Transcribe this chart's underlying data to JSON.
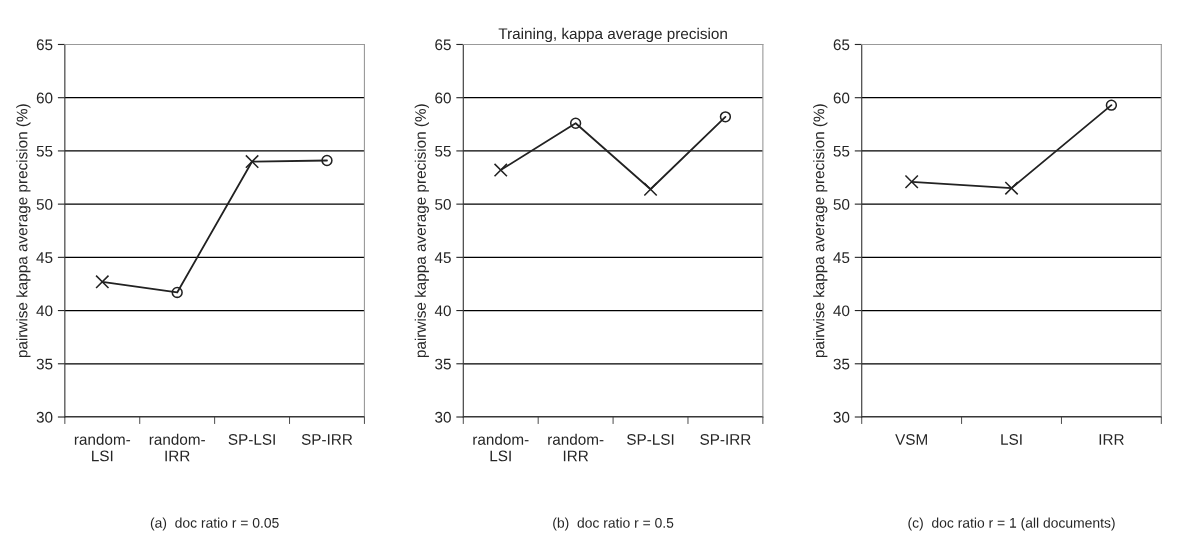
{
  "chart_data": [
    {
      "type": "line",
      "categories": [
        "random-\nLSI",
        "random-\nIRR",
        "SP-LSI",
        "SP-IRR"
      ],
      "ylabel": "pairwise kappa average precision (%)",
      "ylim": [
        30,
        65
      ],
      "yticks": [
        30,
        35,
        40,
        45,
        50,
        55,
        60,
        65
      ],
      "grid": "y",
      "annotations": [
        "(a)  doc ratio r = 0.05"
      ],
      "series": [
        {
          "color": "#222222",
          "values": [
            42.7,
            41.7,
            54.0,
            54.1
          ],
          "marker": "none"
        },
        {
          "type": "scatter",
          "color": "#222222",
          "x": [
            "random-\nLSI",
            "SP-LSI"
          ],
          "values": [
            42.7,
            54.0
          ],
          "marker": "cross"
        },
        {
          "type": "scatter",
          "color": "#222222",
          "x": [
            "random-\nIRR",
            "SP-IRR"
          ],
          "values": [
            41.7,
            54.1
          ],
          "marker": "circle"
        }
      ]
    },
    {
      "type": "line",
      "title": "Training, kappa average precision",
      "categories": [
        "random-\nLSI",
        "random-\nIRR",
        "SP-LSI",
        "SP-IRR"
      ],
      "ylabel": "pairwise kappa average precision (%)",
      "ylim": [
        30,
        65
      ],
      "yticks": [
        30,
        35,
        40,
        45,
        50,
        55,
        60,
        65
      ],
      "grid": "y",
      "annotations": [
        "(b)  doc ratio r = 0.5"
      ],
      "series": [
        {
          "color": "#222222",
          "values": [
            53.2,
            57.6,
            51.4,
            58.2
          ],
          "marker": "none"
        },
        {
          "type": "scatter",
          "color": "#222222",
          "x": [
            "random-\nLSI",
            "SP-LSI"
          ],
          "values": [
            53.2,
            51.4
          ],
          "marker": "cross"
        },
        {
          "type": "scatter",
          "color": "#222222",
          "x": [
            "random-\nIRR",
            "SP-IRR"
          ],
          "values": [
            57.6,
            58.2
          ],
          "marker": "circle"
        }
      ]
    },
    {
      "type": "line",
      "categories": [
        "VSM",
        "LSI",
        "IRR"
      ],
      "ylabel": "pairwise kappa average precision (%)",
      "ylim": [
        30,
        65
      ],
      "yticks": [
        30,
        35,
        40,
        45,
        50,
        55,
        60,
        65
      ],
      "grid": "y",
      "annotations": [
        "(c)  doc ratio r = 1 (all documents)"
      ],
      "series": [
        {
          "color": "#222222",
          "values": [
            52.1,
            51.5,
            59.3
          ],
          "marker": "none"
        },
        {
          "type": "scatter",
          "color": "#222222",
          "x": [
            "VSM",
            "LSI"
          ],
          "values": [
            52.1,
            51.5
          ],
          "marker": "cross"
        },
        {
          "type": "scatter",
          "color": "#222222",
          "x": [
            "IRR"
          ],
          "values": [
            59.3
          ],
          "marker": "circle"
        }
      ]
    }
  ]
}
